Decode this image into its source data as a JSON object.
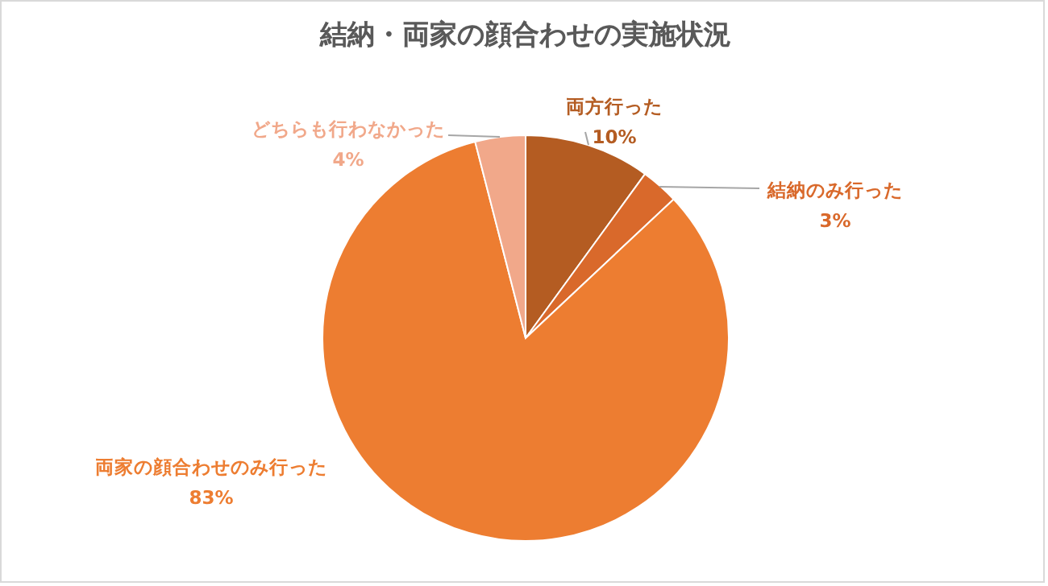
{
  "chart_data": {
    "type": "pie",
    "title": "結納・両家の顔合わせの実施状況",
    "categories": [
      "両方行った",
      "結納のみ行った",
      "両家の顔合わせのみ行った",
      "どちらも行わなかった"
    ],
    "values": [
      10,
      3,
      83,
      4
    ],
    "value_labels": [
      "10%",
      "3%",
      "83%",
      "4%"
    ],
    "colors": [
      "#b45c22",
      "#d9692b",
      "#ed7d31",
      "#f1a88a"
    ]
  }
}
